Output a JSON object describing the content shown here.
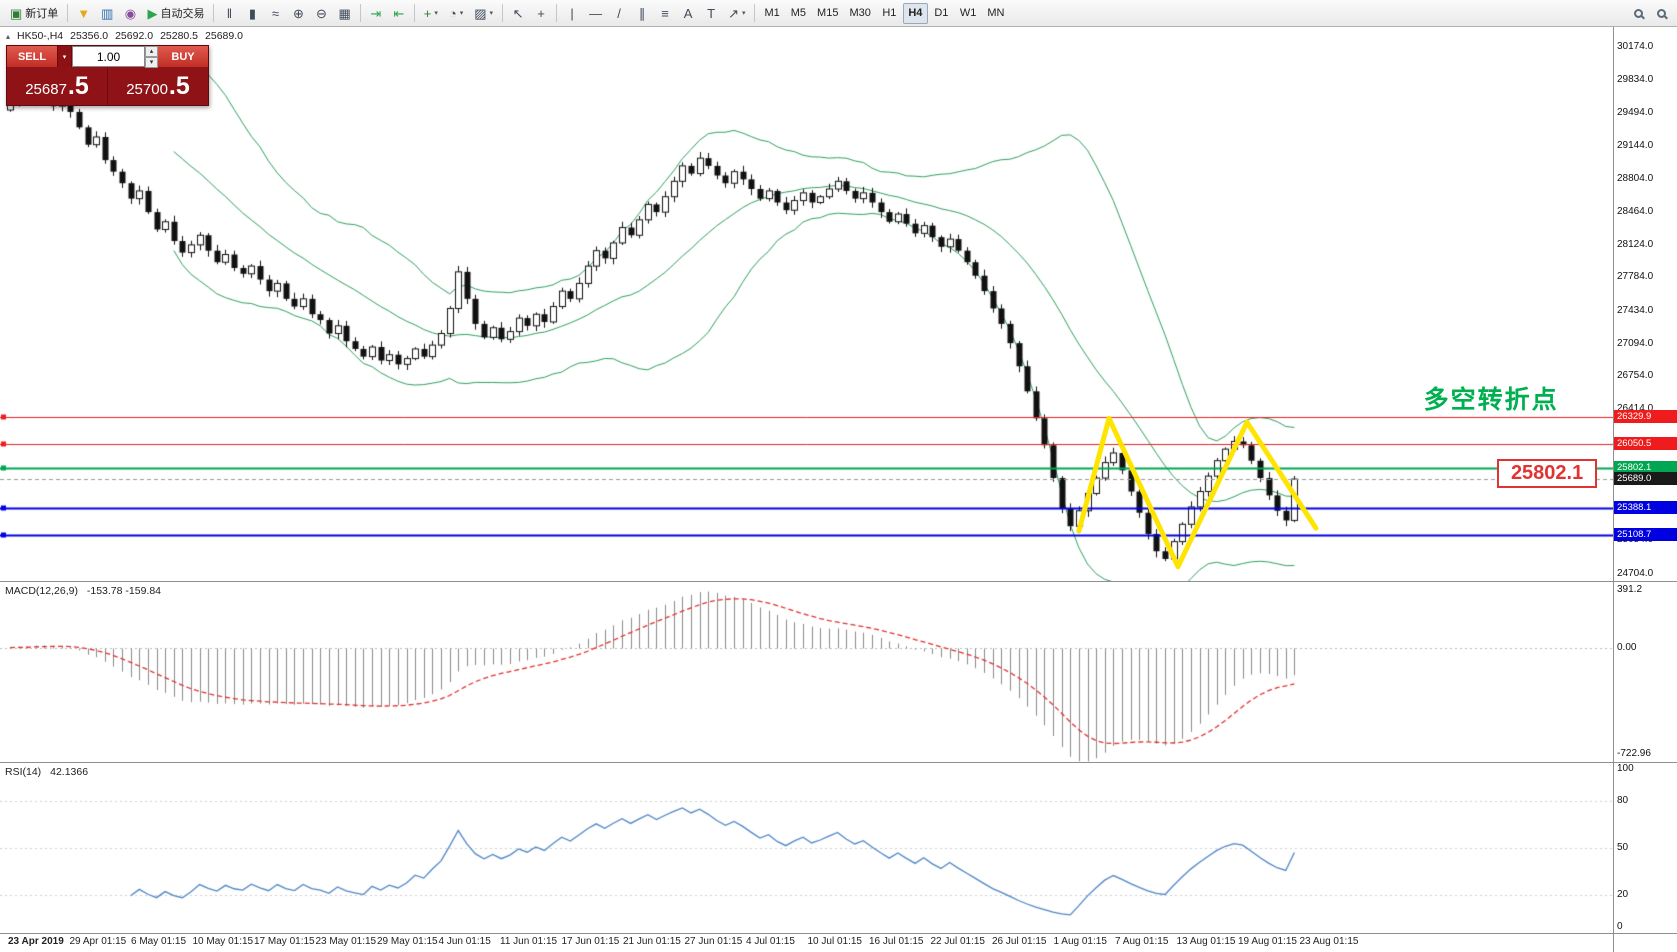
{
  "icons": {
    "header_marker": "▴",
    "caret_down": "▾",
    "caret_up": "▴"
  },
  "toolbar": {
    "buttons": [
      {
        "name": "new-order-button",
        "icon": "new-order-icon",
        "glyph": "▣",
        "glyph_color": "#2e7d32",
        "label": "新订单"
      },
      {
        "sep": true
      },
      {
        "name": "indicators-list-button",
        "icon": "funnel-icon",
        "glyph": "▼",
        "glyph_color": "#e6a817"
      },
      {
        "name": "market-watch-button",
        "icon": "market-watch-icon",
        "glyph": "▥",
        "glyph_color": "#2b6cb0"
      },
      {
        "name": "data-window-button",
        "icon": "data-window-icon",
        "glyph": "◉",
        "glyph_color": "#8a4b9c"
      },
      {
        "name": "auto-trading-button",
        "icon": "auto-trading-icon",
        "glyph": "▶",
        "glyph_color": "#2da44e",
        "label": "自动交易"
      },
      {
        "sep": true
      },
      {
        "name": "bar-chart-button",
        "icon": "bar-chart-icon",
        "glyph": "‖",
        "glyph_color": "#3f4b5a"
      },
      {
        "name": "candlestick-chart-button",
        "icon": "candlestick-icon",
        "glyph": "▮",
        "glyph_color": "#3f4b5a"
      },
      {
        "name": "line-chart-button",
        "icon": "line-chart-icon",
        "glyph": "≈",
        "glyph_color": "#3f4b5a"
      },
      {
        "name": "zoom-in-button",
        "icon": "zoom-in-icon",
        "glyph": "⊕",
        "glyph_color": "#3f4b5a"
      },
      {
        "name": "zoom-out-button",
        "icon": "zoom-out-icon",
        "glyph": "⊖",
        "glyph_color": "#3f4b5a"
      },
      {
        "name": "tile-windows-button",
        "icon": "tile-windows-icon",
        "glyph": "▦",
        "glyph_color": "#3f4b5a"
      },
      {
        "sep": true
      },
      {
        "name": "auto-scroll-button",
        "icon": "auto-scroll-icon",
        "glyph": "⇥",
        "glyph_color": "#2da44e"
      },
      {
        "name": "chart-shift-button",
        "icon": "chart-shift-icon",
        "glyph": "⇤",
        "glyph_color": "#2da44e"
      },
      {
        "sep": true
      },
      {
        "name": "indicators-button",
        "icon": "add-indicator-icon",
        "glyph": "+",
        "glyph_color": "#2e7d32",
        "caret": true
      },
      {
        "name": "periods-button",
        "icon": "clock-icon",
        "glyph": "◔",
        "gly ph_color": "#3f4b5a",
        "caret": true
      },
      {
        "name": "templates-button",
        "icon": "template-icon",
        "glyph": "▨",
        "glyph_color": "#3f4b5a",
        "caret": true
      },
      {
        "sep": true
      },
      {
        "name": "cursor-button",
        "icon": "cursor-icon",
        "glyph": "↖",
        "glyph_color": "#3f4b5a"
      },
      {
        "name": "crosshair-button",
        "icon": "crosshair-icon",
        "glyph": "+",
        "glyph_color": "#3f4b5a"
      },
      {
        "sep": true
      },
      {
        "name": "vertical-line-button",
        "icon": "vertical-line-icon",
        "glyph": "|",
        "glyph_color": "#3f4b5a"
      },
      {
        "name": "horizontal-line-button",
        "icon": "horizontal-line-icon",
        "glyph": "—",
        "glyph_color": "#3f4b5a"
      },
      {
        "name": "trendline-button",
        "icon": "trendline-icon",
        "glyph": "/",
        "glyph_color": "#3f4b5a"
      },
      {
        "name": "channel-button",
        "icon": "channel-icon",
        "glyph": "∥",
        "glyph_color": "#3f4b5a"
      },
      {
        "name": "fibonacci-button",
        "icon": "fibonacci-icon",
        "glyph": "≡",
        "glyph_color": "#3f4b5a"
      },
      {
        "name": "text-button",
        "icon": "text-icon",
        "glyph": "A",
        "glyph_color": "#3f4b5a"
      },
      {
        "name": "text-label-button",
        "icon": "text-label-icon",
        "glyph": "T",
        "glyph_color": "#3f4b5a"
      },
      {
        "name": "arrows-button",
        "icon": "arrow-icon",
        "glyph": "↗",
        "glyph_color": "#3f4b5a",
        "caret": true
      },
      {
        "sep": true
      },
      {
        "name": "timeframe-m1-button",
        "label": "M1",
        "tf": true
      },
      {
        "name": "timeframe-m5-button",
        "label": "M5",
        "tf": true
      },
      {
        "name": "timeframe-m15-button",
        "label": "M15",
        "tf": true
      },
      {
        "name": "timeframe-m30-button",
        "label": "M30",
        "tf": true
      },
      {
        "name": "timeframe-h1-button",
        "label": "H1",
        "tf": true
      },
      {
        "name": "timeframe-h4-button",
        "label": "H4",
        "tf": true,
        "active": true
      },
      {
        "name": "timeframe-d1-button",
        "label": "D1",
        "tf": true
      },
      {
        "name": "timeframe-w1-button",
        "label": "W1",
        "tf": true
      },
      {
        "name": "timeframe-mn-button",
        "label": "MN",
        "tf": true
      },
      {
        "spacer": true
      },
      {
        "name": "symbol-search-button",
        "lens": true,
        "icon": "search-icon"
      },
      {
        "name": "zoom-tool-button",
        "lens": true,
        "icon": "magnifier-icon"
      }
    ]
  },
  "chart_header": {
    "symbol_period": "HK50-,H4",
    "open": "25356.0",
    "high": "25692.0",
    "low": "25280.5",
    "close": "25689.0"
  },
  "trade_panel": {
    "sell_label": "SELL",
    "buy_label": "BUY",
    "volume": "1.00",
    "sell_price_int": "25687",
    "sell_price_frac": ".5",
    "buy_price_int": "25700",
    "buy_price_frac": ".5"
  },
  "chart_data": [
    {
      "type": "candlestick",
      "title": "HK50-,H4",
      "x_labels": [
        "23 Apr 2019",
        "29 Apr 01:15",
        "6 May 01:15",
        "10 May 01:15",
        "17 May 01:15",
        "23 May 01:15",
        "29 May 01:15",
        "4 Jun 01:15",
        "11 Jun 01:15",
        "17 Jun 01:15",
        "21 Jun 01:15",
        "27 Jun 01:15",
        "4 Jul 01:15",
        "10 Jul 01:15",
        "16 Jul 01:15",
        "22 Jul 01:15",
        "26 Jul 01:15",
        "1 Aug 01:15",
        "7 Aug 01:15",
        "13 Aug 01:15",
        "19 Aug 01:15",
        "23 Aug 01:15"
      ],
      "first_open": 29520,
      "closes": [
        29580,
        29660,
        29600,
        29700,
        29640,
        29560,
        29620,
        29500,
        29340,
        29160,
        29240,
        29000,
        28880,
        28760,
        28600,
        28680,
        28460,
        28280,
        28360,
        28160,
        28040,
        28120,
        28220,
        28060,
        27940,
        28020,
        27880,
        27820,
        27900,
        27760,
        27640,
        27720,
        27560,
        27480,
        27560,
        27400,
        27340,
        27200,
        27280,
        27120,
        27040,
        26960,
        27060,
        26920,
        26980,
        26880,
        26940,
        27040,
        26960,
        27080,
        27200,
        27460,
        27840,
        27560,
        27300,
        27160,
        27260,
        27140,
        27220,
        27360,
        27280,
        27400,
        27320,
        27480,
        27640,
        27560,
        27720,
        27900,
        28060,
        27980,
        28140,
        28300,
        28220,
        28380,
        28540,
        28460,
        28620,
        28780,
        28940,
        28860,
        29020,
        28940,
        28840,
        28760,
        28880,
        28800,
        28700,
        28600,
        28680,
        28560,
        28480,
        28580,
        28660,
        28560,
        28620,
        28700,
        28780,
        28680,
        28600,
        28660,
        28560,
        28460,
        28360,
        28440,
        28340,
        28240,
        28320,
        28200,
        28100,
        28180,
        28060,
        27940,
        27800,
        27640,
        27460,
        27300,
        27100,
        26860,
        26600,
        26320,
        26040,
        25700,
        25380,
        25200,
        25360,
        25540,
        25700,
        25860,
        25960,
        25780,
        25560,
        25340,
        25120,
        24940,
        24860,
        25040,
        25220,
        25400,
        25560,
        25720,
        25880,
        26000,
        26080,
        26040,
        25880,
        25700,
        25520,
        25360,
        25260,
        25689
      ],
      "y_ticks": [
        "30174.0",
        "29834.0",
        "29494.0",
        "29144.0",
        "28804.0",
        "28464.0",
        "28124.0",
        "27784.0",
        "27434.0",
        "27094.0",
        "26754.0",
        "26414.0",
        "26074.0",
        "25734.0",
        "25394.0",
        "25054.0",
        "24704.0"
      ],
      "overlays": {
        "bollinger_bands": {
          "period": 20,
          "deviation": 2,
          "color": "#2e9e5b"
        }
      },
      "h_lines": [
        {
          "price": 26329.9,
          "label": "26329.9",
          "color": "#ee1c1c",
          "width": 1
        },
        {
          "price": 26050.5,
          "label": "26050.5",
          "color": "#ee1c1c",
          "width": 1
        },
        {
          "price": 25802.1,
          "label": "25802.1",
          "color": "#00a651",
          "width": 2
        },
        {
          "price": 25388.1,
          "label": "25388.1",
          "color": "#0000e0",
          "width": 2
        },
        {
          "price": 25108.7,
          "label": "25108.7",
          "color": "#0000e0",
          "width": 2
        }
      ],
      "current_price": {
        "price": 25689.0,
        "label": "25689.0",
        "tag_color": "#1a1a1a"
      },
      "annotations": {
        "zigzag": {
          "color": "#ffe400",
          "width": 5,
          "points": [
            [
              124,
              25150
            ],
            [
              127.5,
              26320
            ],
            [
              135.5,
              24780
            ],
            [
              143.5,
              26280
            ],
            [
              151.5,
              25180
            ]
          ]
        },
        "note": {
          "text": "多空转折点",
          "color": "#00b050",
          "bar": 164,
          "price": 26560
        },
        "callout": {
          "text": "25802.1",
          "color": "#e23333",
          "bar": 172.5,
          "price": 25745
        }
      }
    },
    {
      "type": "bar",
      "name": "MACD",
      "label": "MACD(12,26,9)",
      "values": "-153.78 -159.84",
      "params": {
        "fast": 12,
        "slow": 26,
        "signal": 9
      },
      "y_range": [
        -722.96,
        391.2
      ],
      "y_ticks": {
        "top": "391.2",
        "zero": "0.00",
        "bottom": "-722.96"
      },
      "histogram_color": "#8a8a8a",
      "signal_color": "#e03030"
    },
    {
      "type": "line",
      "name": "RSI",
      "label": "RSI(14)",
      "value": "42.1366",
      "period": 14,
      "y_ticks": [
        "100",
        "80",
        "50",
        "20",
        "0"
      ],
      "levels": [
        80,
        50,
        20
      ],
      "line_color": "#4f86c6"
    }
  ]
}
